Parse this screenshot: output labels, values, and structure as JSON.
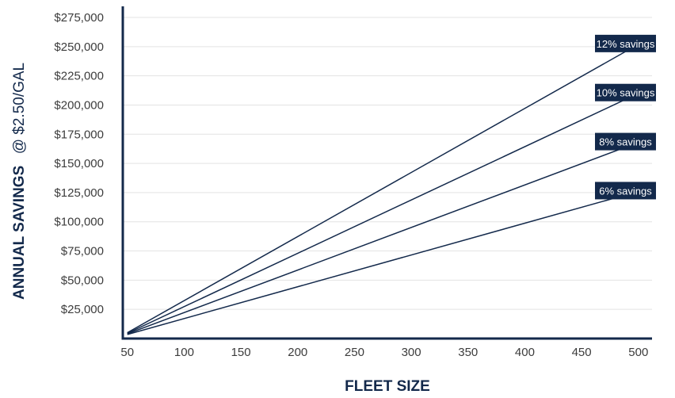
{
  "chart_data": {
    "type": "line",
    "xlabel": "FLEET SIZE",
    "ylabel": {
      "main": "ANNUAL SAVINGS",
      "suffix": "@ $2.50/GAL"
    },
    "x": [
      50,
      500
    ],
    "xlim": [
      46,
      512
    ],
    "ylim": [
      0,
      279000
    ],
    "x_ticks": [
      50,
      100,
      150,
      200,
      250,
      300,
      350,
      400,
      450,
      500
    ],
    "x_tick_labels": [
      "50",
      "100",
      "150",
      "200",
      "250",
      "300",
      "350",
      "400",
      "450",
      "500"
    ],
    "y_ticks": [
      25000,
      50000,
      75000,
      100000,
      125000,
      150000,
      175000,
      200000,
      225000,
      250000,
      275000
    ],
    "y_tick_labels": [
      "$25,000",
      "$50,000",
      "$75,000",
      "$100,000",
      "$125,000",
      "$150,000",
      "$175,000",
      "$200,000",
      "$225,000",
      "$250,000",
      "$275,000"
    ],
    "grid": true,
    "series": [
      {
        "name": "12% savings",
        "values": [
          5000,
          252000
        ]
      },
      {
        "name": "10% savings",
        "values": [
          4500,
          210000
        ]
      },
      {
        "name": "8% savings",
        "values": [
          4000,
          168000
        ]
      },
      {
        "name": "6% savings",
        "values": [
          3500,
          126000
        ]
      }
    ],
    "colors": {
      "line": "#13294b",
      "grid": "#e3e3e3",
      "label_bg": "#13294b",
      "label_text": "#ffffff",
      "tick_text": "#3c3c3c"
    }
  }
}
